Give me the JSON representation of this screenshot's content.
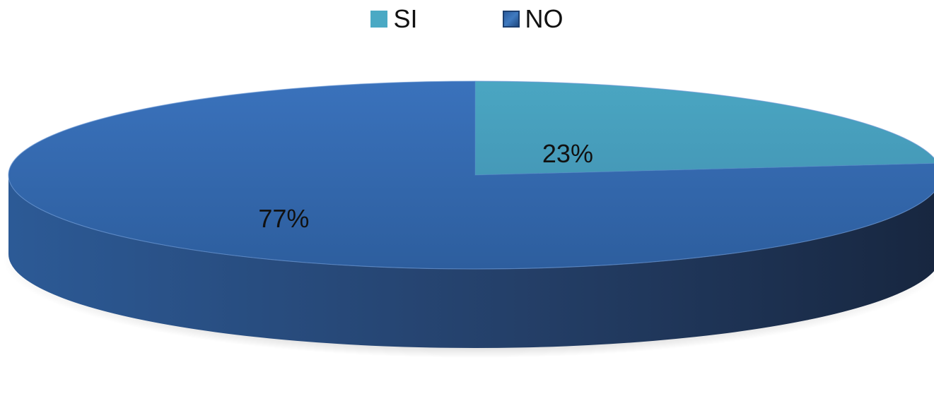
{
  "chart_data": {
    "type": "pie",
    "categories": [
      "SI",
      "NO"
    ],
    "values": [
      23,
      77
    ],
    "data_labels": [
      "23%",
      "77%"
    ],
    "legend_placement": "top",
    "style": "3d",
    "colors": [
      "#4aa9c4",
      "#2f64a6"
    ]
  }
}
